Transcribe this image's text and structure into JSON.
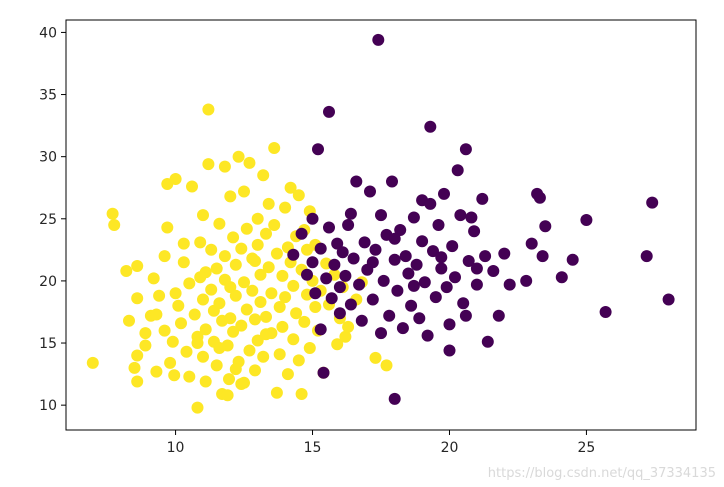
{
  "chart_data": {
    "type": "scatter",
    "title": "",
    "xlabel": "",
    "ylabel": "",
    "xlim": [
      6,
      29
    ],
    "ylim": [
      8,
      41
    ],
    "xticks": [
      10,
      15,
      20,
      25
    ],
    "yticks": [
      10,
      15,
      20,
      25,
      30,
      35,
      40
    ],
    "grid": false,
    "legend": "none",
    "series": [
      {
        "color": "#fde725",
        "points": [
          [
            6.98,
            13.4
          ],
          [
            7.7,
            25.4
          ],
          [
            7.76,
            24.5
          ],
          [
            8.2,
            20.8
          ],
          [
            8.3,
            16.8
          ],
          [
            8.6,
            21.2
          ],
          [
            8.6,
            18.6
          ],
          [
            8.6,
            14.0
          ],
          [
            8.5,
            13.0
          ],
          [
            8.6,
            11.9
          ],
          [
            8.9,
            15.8
          ],
          [
            8.9,
            14.8
          ],
          [
            9.1,
            17.2
          ],
          [
            9.2,
            20.2
          ],
          [
            9.3,
            12.7
          ],
          [
            9.4,
            18.8
          ],
          [
            9.6,
            16.0
          ],
          [
            9.6,
            22.0
          ],
          [
            9.7,
            27.8
          ],
          [
            9.8,
            13.4
          ],
          [
            9.9,
            15.1
          ],
          [
            9.95,
            12.4
          ],
          [
            10.0,
            19.0
          ],
          [
            10.0,
            28.2
          ],
          [
            10.1,
            18.0
          ],
          [
            10.2,
            16.6
          ],
          [
            10.3,
            21.5
          ],
          [
            10.4,
            14.3
          ],
          [
            10.5,
            19.8
          ],
          [
            10.5,
            12.3
          ],
          [
            10.6,
            27.6
          ],
          [
            10.7,
            17.3
          ],
          [
            10.8,
            15.5
          ],
          [
            10.9,
            23.1
          ],
          [
            10.9,
            20.3
          ],
          [
            11.0,
            25.3
          ],
          [
            11.0,
            18.5
          ],
          [
            11.0,
            13.9
          ],
          [
            11.1,
            16.1
          ],
          [
            11.1,
            11.9
          ],
          [
            11.2,
            29.4
          ],
          [
            11.2,
            33.8
          ],
          [
            11.3,
            22.5
          ],
          [
            11.3,
            19.3
          ],
          [
            11.4,
            17.6
          ],
          [
            11.4,
            15.1
          ],
          [
            11.5,
            21.0
          ],
          [
            11.5,
            13.2
          ],
          [
            11.6,
            24.6
          ],
          [
            11.6,
            18.2
          ],
          [
            11.7,
            16.8
          ],
          [
            11.7,
            10.9
          ],
          [
            11.8,
            29.2
          ],
          [
            11.8,
            22.0
          ],
          [
            11.8,
            20.1
          ],
          [
            11.9,
            14.8
          ],
          [
            11.95,
            12.1
          ],
          [
            12.0,
            26.8
          ],
          [
            12.0,
            19.5
          ],
          [
            12.0,
            17.0
          ],
          [
            12.1,
            23.5
          ],
          [
            12.1,
            15.9
          ],
          [
            12.2,
            21.3
          ],
          [
            12.2,
            18.8
          ],
          [
            12.3,
            30.0
          ],
          [
            12.3,
            13.5
          ],
          [
            12.4,
            22.6
          ],
          [
            12.4,
            16.4
          ],
          [
            12.5,
            27.2
          ],
          [
            12.5,
            19.9
          ],
          [
            12.5,
            11.8
          ],
          [
            12.6,
            24.2
          ],
          [
            12.6,
            17.7
          ],
          [
            12.7,
            29.5
          ],
          [
            12.7,
            14.4
          ],
          [
            12.8,
            21.8
          ],
          [
            12.8,
            19.2
          ],
          [
            12.9,
            16.9
          ],
          [
            12.9,
            12.8
          ],
          [
            13.0,
            25.0
          ],
          [
            13.0,
            22.9
          ],
          [
            13.0,
            15.2
          ],
          [
            13.1,
            20.5
          ],
          [
            13.1,
            18.3
          ],
          [
            13.2,
            28.5
          ],
          [
            13.2,
            13.9
          ],
          [
            13.3,
            23.8
          ],
          [
            13.3,
            17.1
          ],
          [
            13.4,
            26.2
          ],
          [
            13.4,
            21.1
          ],
          [
            13.5,
            19.0
          ],
          [
            13.5,
            15.8
          ],
          [
            13.6,
            30.7
          ],
          [
            13.6,
            24.5
          ],
          [
            13.7,
            11.0
          ],
          [
            13.7,
            22.2
          ],
          [
            13.8,
            17.9
          ],
          [
            13.8,
            14.1
          ],
          [
            13.9,
            20.4
          ],
          [
            13.9,
            16.3
          ],
          [
            14.0,
            25.9
          ],
          [
            14.0,
            18.7
          ],
          [
            14.1,
            22.7
          ],
          [
            14.1,
            12.5
          ],
          [
            14.2,
            27.5
          ],
          [
            14.2,
            21.5
          ],
          [
            14.3,
            19.6
          ],
          [
            14.3,
            15.3
          ],
          [
            14.4,
            23.6
          ],
          [
            14.4,
            17.4
          ],
          [
            14.5,
            26.9
          ],
          [
            14.5,
            13.6
          ],
          [
            14.6,
            20.9
          ],
          [
            14.6,
            10.9
          ],
          [
            14.7,
            24.1
          ],
          [
            14.7,
            16.7
          ],
          [
            14.8,
            22.5
          ],
          [
            14.8,
            18.9
          ],
          [
            14.9,
            25.6
          ],
          [
            14.9,
            14.6
          ],
          [
            15.0,
            20.0
          ],
          [
            15.1,
            17.9
          ],
          [
            15.1,
            22.9
          ],
          [
            15.2,
            16.0
          ],
          [
            15.3,
            19.2
          ],
          [
            15.4,
            12.6
          ],
          [
            15.5,
            21.4
          ],
          [
            15.6,
            18.1
          ],
          [
            15.8,
            20.5
          ],
          [
            15.9,
            14.9
          ],
          [
            16.0,
            17.0
          ],
          [
            16.1,
            19.5
          ],
          [
            16.2,
            15.5
          ],
          [
            16.3,
            16.3
          ],
          [
            16.6,
            18.5
          ],
          [
            16.8,
            19.9
          ],
          [
            17.3,
            13.8
          ],
          [
            17.7,
            13.2
          ],
          [
            10.8,
            9.8
          ],
          [
            11.9,
            10.8
          ],
          [
            12.4,
            11.7
          ],
          [
            9.7,
            24.3
          ],
          [
            9.3,
            17.3
          ],
          [
            10.3,
            23.0
          ],
          [
            11.1,
            20.7
          ],
          [
            12.9,
            21.6
          ],
          [
            13.3,
            15.7
          ],
          [
            11.6,
            14.6
          ],
          [
            10.8,
            15.0
          ],
          [
            12.2,
            12.9
          ]
        ]
      },
      {
        "color": "#440154",
        "points": [
          [
            14.3,
            22.1
          ],
          [
            14.6,
            23.8
          ],
          [
            14.8,
            20.5
          ],
          [
            15.0,
            25.0
          ],
          [
            15.0,
            21.5
          ],
          [
            15.1,
            19.0
          ],
          [
            15.2,
            30.6
          ],
          [
            15.3,
            22.6
          ],
          [
            15.3,
            16.1
          ],
          [
            15.4,
            12.6
          ],
          [
            15.5,
            20.2
          ],
          [
            15.6,
            33.6
          ],
          [
            15.6,
            24.3
          ],
          [
            15.7,
            18.6
          ],
          [
            15.8,
            21.3
          ],
          [
            15.9,
            23.0
          ],
          [
            16.0,
            19.5
          ],
          [
            16.0,
            17.4
          ],
          [
            16.1,
            22.3
          ],
          [
            16.2,
            20.4
          ],
          [
            16.3,
            24.5
          ],
          [
            16.4,
            18.1
          ],
          [
            16.5,
            21.8
          ],
          [
            16.6,
            28.0
          ],
          [
            16.7,
            19.7
          ],
          [
            16.8,
            16.8
          ],
          [
            16.9,
            23.1
          ],
          [
            17.0,
            20.9
          ],
          [
            17.1,
            27.2
          ],
          [
            17.2,
            18.5
          ],
          [
            17.3,
            22.5
          ],
          [
            17.4,
            39.4
          ],
          [
            17.5,
            25.3
          ],
          [
            17.5,
            15.8
          ],
          [
            17.6,
            20.0
          ],
          [
            17.7,
            23.7
          ],
          [
            17.8,
            17.2
          ],
          [
            17.9,
            28.0
          ],
          [
            18.0,
            21.7
          ],
          [
            18.0,
            10.5
          ],
          [
            18.1,
            19.2
          ],
          [
            18.2,
            24.1
          ],
          [
            18.3,
            16.2
          ],
          [
            18.4,
            22.0
          ],
          [
            18.5,
            20.6
          ],
          [
            18.6,
            18.0
          ],
          [
            18.7,
            25.1
          ],
          [
            18.8,
            21.3
          ],
          [
            18.9,
            17.0
          ],
          [
            19.0,
            26.5
          ],
          [
            19.0,
            23.2
          ],
          [
            19.1,
            19.9
          ],
          [
            19.2,
            15.6
          ],
          [
            19.3,
            32.4
          ],
          [
            19.4,
            22.4
          ],
          [
            19.5,
            18.7
          ],
          [
            19.6,
            24.5
          ],
          [
            19.7,
            21.0
          ],
          [
            19.8,
            27.0
          ],
          [
            19.9,
            19.5
          ],
          [
            20.0,
            16.5
          ],
          [
            20.0,
            14.4
          ],
          [
            20.1,
            22.8
          ],
          [
            20.2,
            20.3
          ],
          [
            20.3,
            28.9
          ],
          [
            20.4,
            25.3
          ],
          [
            20.5,
            18.2
          ],
          [
            20.6,
            30.6
          ],
          [
            20.6,
            17.2
          ],
          [
            20.7,
            21.6
          ],
          [
            20.9,
            24.0
          ],
          [
            21.0,
            19.7
          ],
          [
            21.2,
            26.6
          ],
          [
            21.3,
            22.0
          ],
          [
            21.4,
            15.1
          ],
          [
            21.6,
            20.8
          ],
          [
            21.8,
            17.2
          ],
          [
            22.0,
            22.2
          ],
          [
            22.2,
            19.7
          ],
          [
            22.8,
            20.0
          ],
          [
            23.0,
            23.0
          ],
          [
            23.2,
            27.0
          ],
          [
            23.3,
            26.7
          ],
          [
            23.4,
            22.0
          ],
          [
            23.5,
            24.4
          ],
          [
            24.1,
            20.3
          ],
          [
            24.5,
            21.7
          ],
          [
            25.0,
            24.9
          ],
          [
            25.7,
            17.5
          ],
          [
            27.2,
            22.0
          ],
          [
            27.4,
            26.3
          ],
          [
            28.0,
            18.5
          ],
          [
            19.7,
            21.9
          ],
          [
            18.7,
            19.6
          ],
          [
            17.2,
            21.5
          ],
          [
            16.4,
            25.4
          ],
          [
            19.3,
            26.2
          ],
          [
            20.8,
            25.1
          ],
          [
            18.0,
            23.4
          ],
          [
            21.0,
            21.0
          ]
        ]
      }
    ]
  }
}
